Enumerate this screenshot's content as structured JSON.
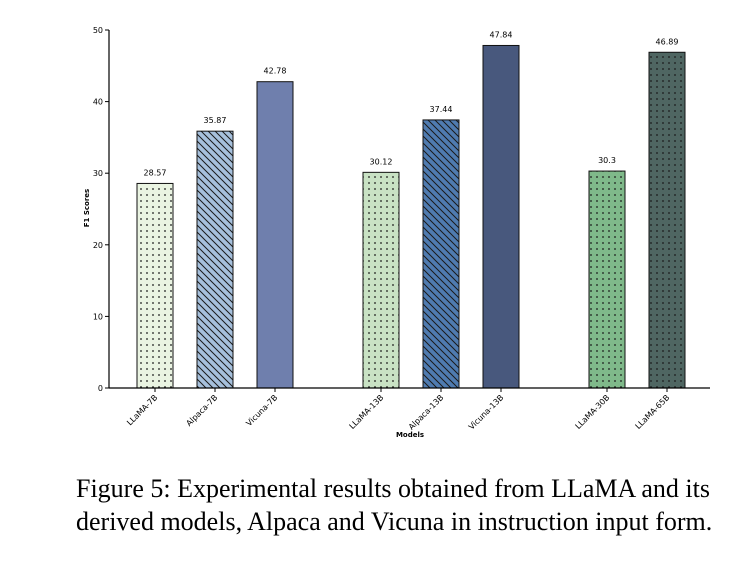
{
  "chart_data": {
    "type": "bar",
    "categories": [
      "LLaMA-7B",
      "Alpaca-7B",
      "Vicuna-7B",
      "LLaMA-13B",
      "Alpaca-13B",
      "Vicuna-13B",
      "LLaMA-30B",
      "LLaMA-65B"
    ],
    "values": [
      28.57,
      35.87,
      42.78,
      30.12,
      37.44,
      47.84,
      30.3,
      46.89
    ],
    "value_labels": [
      "28.57",
      "35.87",
      "42.78",
      "30.12",
      "37.44",
      "47.84",
      "30.3",
      "46.89"
    ],
    "groups": [
      [
        0,
        1,
        2
      ],
      [
        3,
        4,
        5
      ],
      [
        6,
        7
      ]
    ],
    "colors": [
      "#eaf4e2",
      "#a6c0dc",
      "#6f7fad",
      "#c9e2c4",
      "#4f7bb0",
      "#48587d",
      "#7fb98a",
      "#4f6662"
    ],
    "patterns": [
      "dots",
      "diag",
      "none",
      "dots",
      "diag",
      "none",
      "dots",
      "dots"
    ],
    "xlabel": "Models",
    "ylabel": "F1 Scores",
    "ylim": [
      0,
      50
    ],
    "yticks": [
      "0",
      "10",
      "20",
      "30",
      "40",
      "50"
    ],
    "grid": false,
    "legend": "none"
  },
  "caption": "Figure 5: Experimental results obtained from LLaMA and its derived models, Alpaca and Vicuna in instruction input form."
}
